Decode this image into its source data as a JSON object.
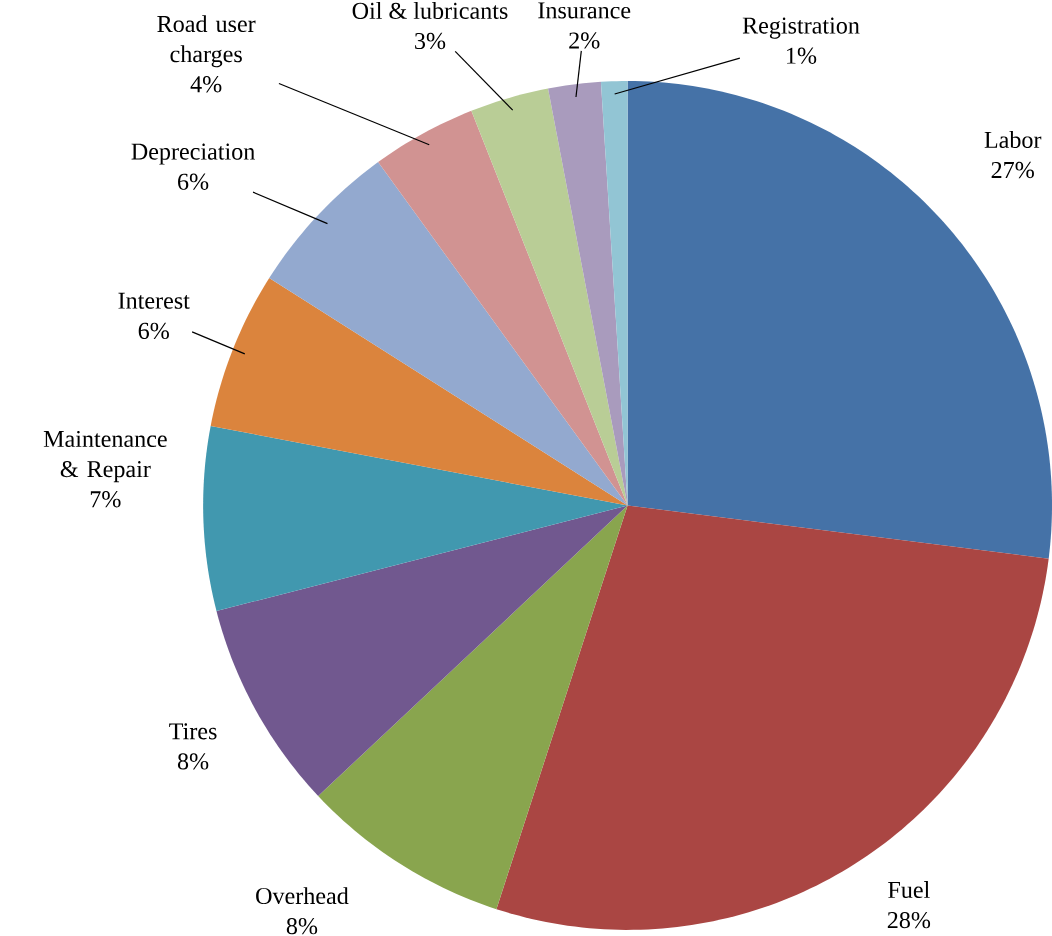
{
  "chart_data": {
    "type": "pie",
    "categories": [
      "Labor",
      "Fuel",
      "Overhead",
      "Tires",
      "Maintenance & Repair",
      "Interest",
      "Depreciation",
      "Road user charges",
      "Oil & lubricants",
      "Insurance",
      "Registration"
    ],
    "values": [
      27,
      28,
      8,
      8,
      7,
      6,
      6,
      4,
      3,
      2,
      1
    ],
    "colors": [
      "#4572a7",
      "#aa4643",
      "#89a54e",
      "#71588f",
      "#4198af",
      "#db843d",
      "#93a9cf",
      "#d19392",
      "#b9cd96",
      "#a99bbd",
      "#92c5d4"
    ],
    "value_labels": [
      "27%",
      "28%",
      "8%",
      "8%",
      "7%",
      "6%",
      "6%",
      "4%",
      "3%",
      "2%",
      "1%"
    ]
  }
}
